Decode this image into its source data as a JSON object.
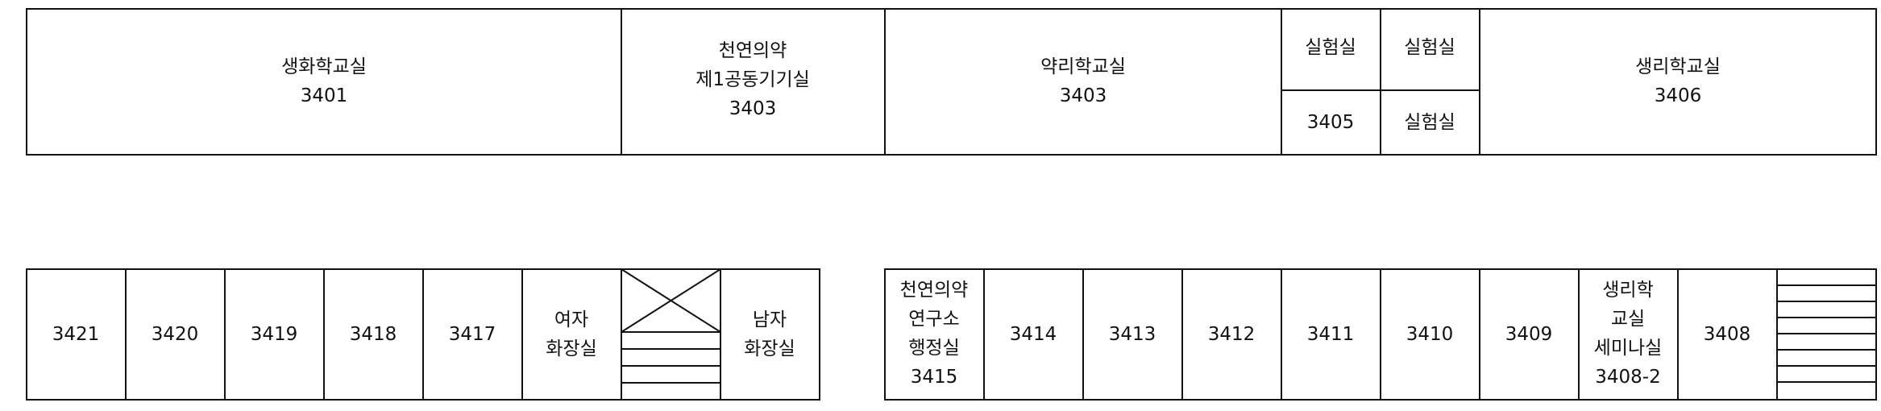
{
  "colors": {
    "stroke": "#111111",
    "background": "#ffffff"
  },
  "top_row": {
    "room_3401": {
      "name": "생화학교실",
      "number": "3401"
    },
    "room_3403a": {
      "line1": "천연의약",
      "line2": "제1공동기기실",
      "number": "3403"
    },
    "room_3403b": {
      "name": "약리학교실",
      "number": "3403"
    },
    "lab_top_left": "실험실",
    "lab_top_right": "실험실",
    "room_3405": "3405",
    "lab_bottom_right": "실험실",
    "room_3406": {
      "name": "생리학교실",
      "number": "3406"
    }
  },
  "bottom_left": {
    "rooms": [
      "3421",
      "3420",
      "3419",
      "3418",
      "3417"
    ],
    "womens_restroom": {
      "line1": "여자",
      "line2": "화장실"
    },
    "stair_icon": "stairs-with-x",
    "mens_restroom": {
      "line1": "남자",
      "line2": "화장실"
    }
  },
  "bottom_right": {
    "room_3415": {
      "line1": "천연의약",
      "line2": "연구소",
      "line3": "행정실",
      "number": "3415"
    },
    "rooms": [
      "3414",
      "3413",
      "3412",
      "3411",
      "3410",
      "3409"
    ],
    "room_3408_2": {
      "line1": "생리학",
      "line2": "교실",
      "line3": "세미나실",
      "number": "3408-2"
    },
    "room_3408": "3408",
    "stair_icon": "stairs"
  }
}
